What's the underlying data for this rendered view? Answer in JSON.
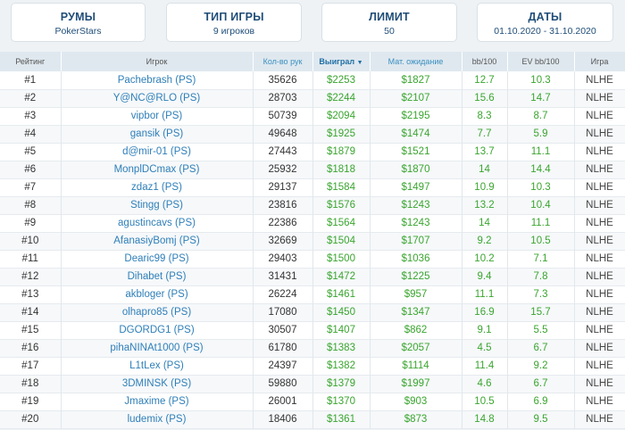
{
  "filters": [
    {
      "title": "РУМЫ",
      "value": "PokerStars"
    },
    {
      "title": "ТИП ИГРЫ",
      "value": "9 игроков"
    },
    {
      "title": "ЛИМИТ",
      "value": "50"
    },
    {
      "title": "ДАТЫ",
      "value": "01.10.2020 - 31.10.2020"
    }
  ],
  "table": {
    "headers": {
      "rank": "Рейтинг",
      "player": "Игрок",
      "hands": "Кол-во рук",
      "won": "Выиграл",
      "ev": "Мат. ожидание",
      "bb100": "bb/100",
      "evbb100": "EV bb/100",
      "game": "Игра"
    },
    "sort_icon": "sort-down-icon",
    "rows": [
      {
        "rank": "#1",
        "player": "Pachebrash (PS)",
        "hands": "35626",
        "won": "$2253",
        "ev": "$1827",
        "bb": "12.7",
        "evbb": "10.3",
        "game": "NLHE"
      },
      {
        "rank": "#2",
        "player": "Y@NC@RLO (PS)",
        "hands": "28703",
        "won": "$2244",
        "ev": "$2107",
        "bb": "15.6",
        "evbb": "14.7",
        "game": "NLHE"
      },
      {
        "rank": "#3",
        "player": "vipbor (PS)",
        "hands": "50739",
        "won": "$2094",
        "ev": "$2195",
        "bb": "8.3",
        "evbb": "8.7",
        "game": "NLHE"
      },
      {
        "rank": "#4",
        "player": "gansik (PS)",
        "hands": "49648",
        "won": "$1925",
        "ev": "$1474",
        "bb": "7.7",
        "evbb": "5.9",
        "game": "NLHE"
      },
      {
        "rank": "#5",
        "player": "d@mir-01 (PS)",
        "hands": "27443",
        "won": "$1879",
        "ev": "$1521",
        "bb": "13.7",
        "evbb": "11.1",
        "game": "NLHE"
      },
      {
        "rank": "#6",
        "player": "MonplDCmax (PS)",
        "hands": "25932",
        "won": "$1818",
        "ev": "$1870",
        "bb": "14",
        "evbb": "14.4",
        "game": "NLHE"
      },
      {
        "rank": "#7",
        "player": "zdaz1 (PS)",
        "hands": "29137",
        "won": "$1584",
        "ev": "$1497",
        "bb": "10.9",
        "evbb": "10.3",
        "game": "NLHE"
      },
      {
        "rank": "#8",
        "player": "Stingg (PS)",
        "hands": "23816",
        "won": "$1576",
        "ev": "$1243",
        "bb": "13.2",
        "evbb": "10.4",
        "game": "NLHE"
      },
      {
        "rank": "#9",
        "player": "agustincavs (PS)",
        "hands": "22386",
        "won": "$1564",
        "ev": "$1243",
        "bb": "14",
        "evbb": "11.1",
        "game": "NLHE"
      },
      {
        "rank": "#10",
        "player": "AfanasiyBomj (PS)",
        "hands": "32669",
        "won": "$1504",
        "ev": "$1707",
        "bb": "9.2",
        "evbb": "10.5",
        "game": "NLHE"
      },
      {
        "rank": "#11",
        "player": "Dearic99 (PS)",
        "hands": "29403",
        "won": "$1500",
        "ev": "$1036",
        "bb": "10.2",
        "evbb": "7.1",
        "game": "NLHE"
      },
      {
        "rank": "#12",
        "player": "Dihabet (PS)",
        "hands": "31431",
        "won": "$1472",
        "ev": "$1225",
        "bb": "9.4",
        "evbb": "7.8",
        "game": "NLHE"
      },
      {
        "rank": "#13",
        "player": "akbloger (PS)",
        "hands": "26224",
        "won": "$1461",
        "ev": "$957",
        "bb": "11.1",
        "evbb": "7.3",
        "game": "NLHE"
      },
      {
        "rank": "#14",
        "player": "olhapro85 (PS)",
        "hands": "17080",
        "won": "$1450",
        "ev": "$1347",
        "bb": "16.9",
        "evbb": "15.7",
        "game": "NLHE"
      },
      {
        "rank": "#15",
        "player": "DGORDG1 (PS)",
        "hands": "30507",
        "won": "$1407",
        "ev": "$862",
        "bb": "9.1",
        "evbb": "5.5",
        "game": "NLHE"
      },
      {
        "rank": "#16",
        "player": "pihaNINAt1000 (PS)",
        "hands": "61780",
        "won": "$1383",
        "ev": "$2057",
        "bb": "4.5",
        "evbb": "6.7",
        "game": "NLHE"
      },
      {
        "rank": "#17",
        "player": "L1tLex (PS)",
        "hands": "24397",
        "won": "$1382",
        "ev": "$1114",
        "bb": "11.4",
        "evbb": "9.2",
        "game": "NLHE"
      },
      {
        "rank": "#18",
        "player": "3DMINSK (PS)",
        "hands": "59880",
        "won": "$1379",
        "ev": "$1997",
        "bb": "4.6",
        "evbb": "6.7",
        "game": "NLHE"
      },
      {
        "rank": "#19",
        "player": "Jmaxime (PS)",
        "hands": "26001",
        "won": "$1370",
        "ev": "$903",
        "bb": "10.5",
        "evbb": "6.9",
        "game": "NLHE"
      },
      {
        "rank": "#20",
        "player": "ludemix (PS)",
        "hands": "18406",
        "won": "$1361",
        "ev": "$873",
        "bb": "14.8",
        "evbb": "9.5",
        "game": "NLHE"
      }
    ]
  }
}
